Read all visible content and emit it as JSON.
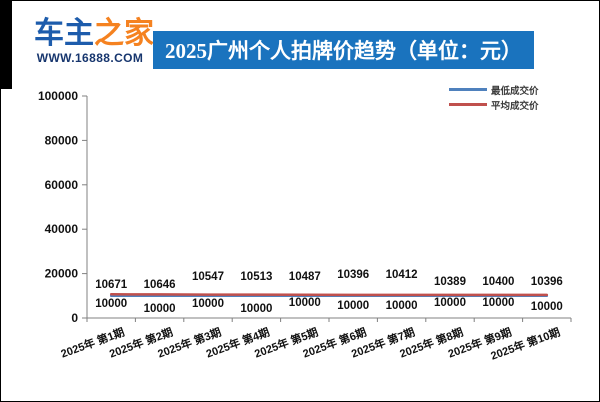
{
  "site": {
    "logo_part1": "车主",
    "logo_part2": "之家",
    "url": "WWW.16888.COM",
    "logo_blue": "#1d5cac",
    "logo_orange": "#f58220"
  },
  "header": {
    "title": "2025广州个人拍牌价趋势（单位：元）",
    "banner_color": "#1a73be"
  },
  "legend": [
    {
      "label": "最低成交价",
      "color": "#4F81BD"
    },
    {
      "label": "平均成交价",
      "color": "#C0504D"
    }
  ],
  "chart_data": {
    "type": "line",
    "title": "2025广州个人拍牌价趋势（单位：元）",
    "categories": [
      "2025年 第1期",
      "2025年 第2期",
      "2025年 第3期",
      "2025年 第4期",
      "2025年 第5期",
      "2025年 第6期",
      "2025年 第7期",
      "2025年 第8期",
      "2025年 第9期",
      "2025年 第10期"
    ],
    "series": [
      {
        "name": "最低成交价",
        "color": "#4F81BD",
        "values": [
          10000,
          10000,
          10000,
          10000,
          10000,
          10000,
          10000,
          10000,
          10000,
          10000
        ]
      },
      {
        "name": "平均成交价",
        "color": "#C0504D",
        "values": [
          10671,
          10646,
          10547,
          10513,
          10487,
          10396,
          10412,
          10389,
          10400,
          10396
        ]
      }
    ],
    "xlabel": "",
    "ylabel": "",
    "ylim": [
      0,
      100000
    ],
    "ytick_step": 20000,
    "grid": false,
    "legend_position": "top-right",
    "data_labels": true
  }
}
